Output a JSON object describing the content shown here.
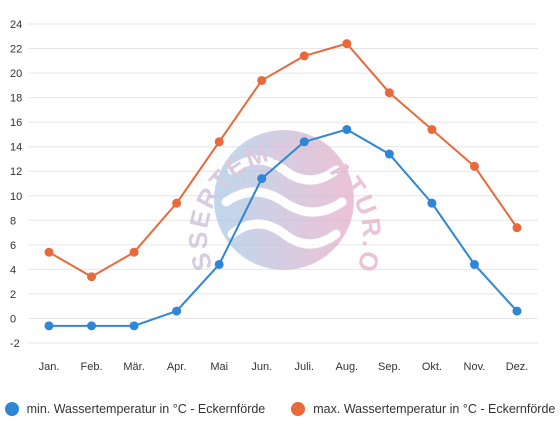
{
  "chart_data": {
    "type": "line",
    "categories": [
      "Jan.",
      "Feb.",
      "Mär.",
      "Apr.",
      "Mai",
      "Jun.",
      "Juli.",
      "Aug.",
      "Sep.",
      "Okt.",
      "Nov.",
      "Dez."
    ],
    "ylim": [
      -2,
      24
    ],
    "yticks": [
      -2,
      0,
      2,
      4,
      6,
      8,
      10,
      12,
      14,
      16,
      18,
      20,
      22,
      24
    ],
    "grid": true,
    "legend": "bottom",
    "series": [
      {
        "name": "min. Wassertemperatur in °C - Eckernförde",
        "color": "#2e86d4",
        "values": [
          -0.6,
          -0.6,
          -0.6,
          0.6,
          4.4,
          11.4,
          14.4,
          15.4,
          13.4,
          9.4,
          4.4,
          0.6
        ]
      },
      {
        "name": "max. Wassertemperatur in °C - Eckernförde",
        "color": "#e8693a",
        "values": [
          5.4,
          3.4,
          5.4,
          9.4,
          14.4,
          19.4,
          21.4,
          22.4,
          18.4,
          15.4,
          12.4,
          7.4
        ]
      }
    ]
  },
  "watermark": {
    "text": "WASSERTEMPERATUR.ORG",
    "colors": [
      "#a9cbe8",
      "#e7aec8"
    ]
  },
  "legend": {
    "min_label": "min. Wassertemperatur in °C - Eckernförde",
    "max_label": "max. Wassertemperatur in °C - Eckernförde"
  }
}
